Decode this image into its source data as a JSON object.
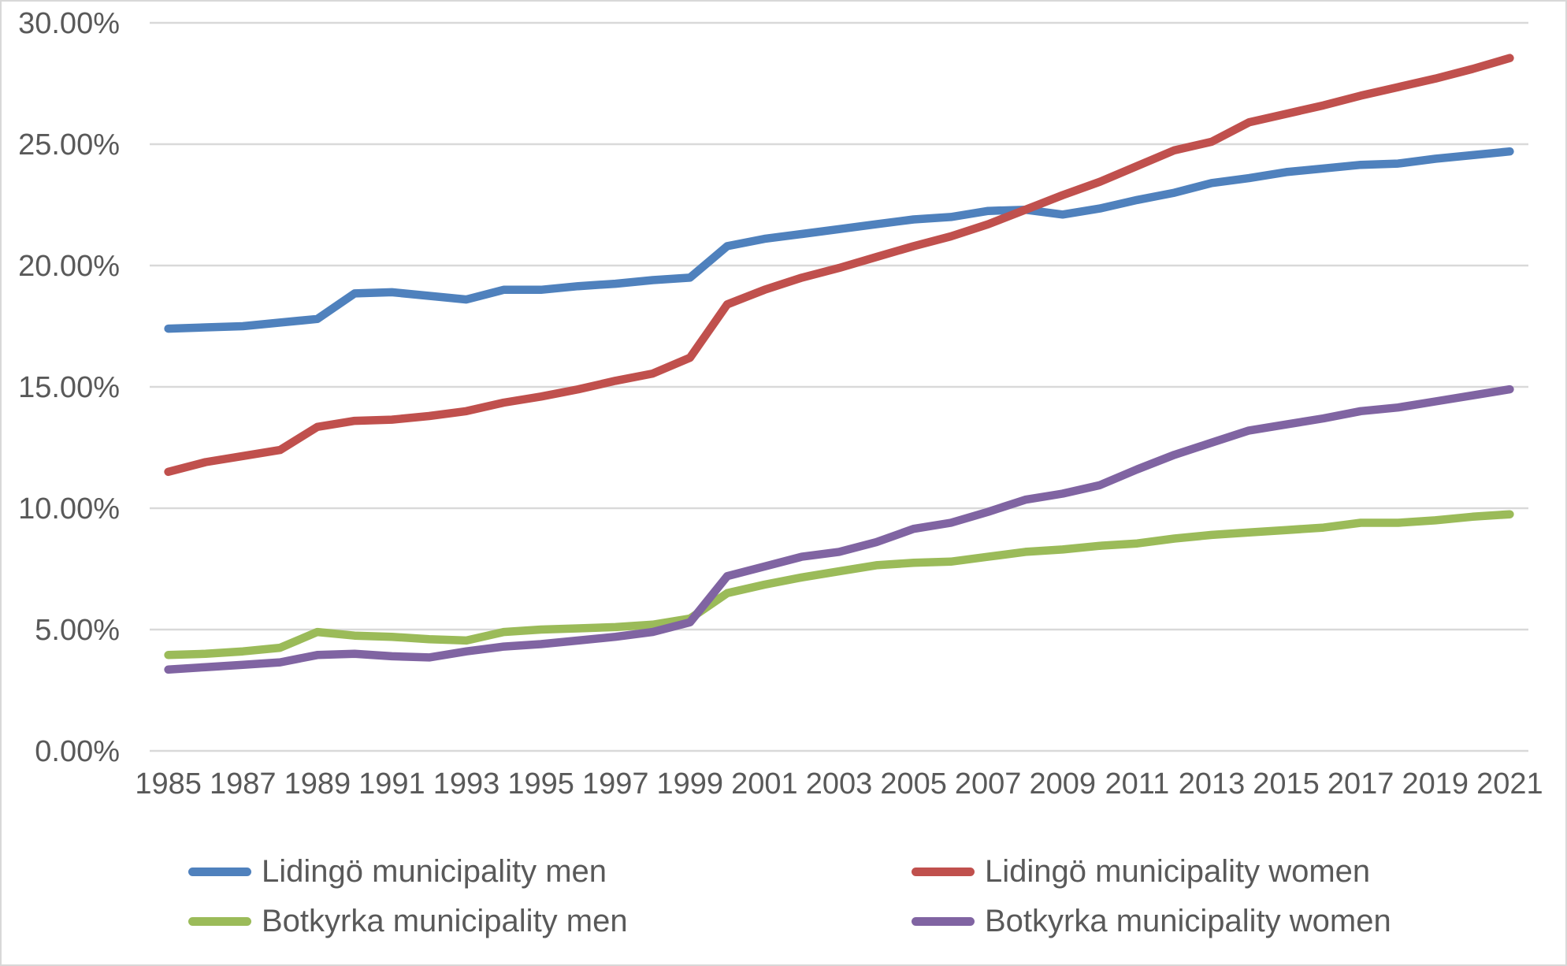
{
  "chart_data": {
    "type": "line",
    "x": [
      1985,
      1986,
      1987,
      1988,
      1989,
      1990,
      1991,
      1992,
      1993,
      1994,
      1995,
      1996,
      1997,
      1998,
      1999,
      2000,
      2001,
      2002,
      2003,
      2004,
      2005,
      2006,
      2007,
      2008,
      2009,
      2010,
      2011,
      2012,
      2013,
      2014,
      2015,
      2016,
      2017,
      2018,
      2019,
      2020,
      2021
    ],
    "series": [
      {
        "name": "Lidingö municipality men",
        "color": "#4F81BD",
        "values": [
          17.4,
          17.45,
          17.5,
          17.65,
          17.8,
          18.85,
          18.9,
          18.75,
          18.6,
          19.0,
          19.0,
          19.15,
          19.25,
          19.4,
          19.5,
          20.8,
          21.1,
          21.3,
          21.5,
          21.7,
          21.9,
          22.0,
          22.25,
          22.3,
          22.1,
          22.35,
          22.7,
          23.0,
          23.4,
          23.6,
          23.85,
          24.0,
          24.15,
          24.2,
          24.4,
          24.55,
          24.7
        ]
      },
      {
        "name": "Lidingö municipality women",
        "color": "#C0504D",
        "values": [
          11.5,
          11.9,
          12.15,
          12.4,
          13.35,
          13.6,
          13.65,
          13.8,
          14.0,
          14.35,
          14.6,
          14.9,
          15.25,
          15.55,
          16.2,
          18.4,
          19.0,
          19.5,
          19.9,
          20.35,
          20.8,
          21.2,
          21.7,
          22.3,
          22.9,
          23.45,
          24.1,
          24.75,
          25.1,
          25.9,
          26.25,
          26.6,
          27.0,
          27.35,
          27.7,
          28.1,
          28.55
        ]
      },
      {
        "name": "Botkyrka municipality men",
        "color": "#9BBB59",
        "values": [
          3.95,
          4.0,
          4.1,
          4.25,
          4.9,
          4.75,
          4.7,
          4.6,
          4.55,
          4.9,
          5.0,
          5.05,
          5.1,
          5.2,
          5.45,
          6.5,
          6.85,
          7.15,
          7.4,
          7.65,
          7.75,
          7.8,
          8.0,
          8.2,
          8.3,
          8.45,
          8.55,
          8.75,
          8.9,
          9.0,
          9.1,
          9.2,
          9.4,
          9.4,
          9.5,
          9.65,
          9.75
        ]
      },
      {
        "name": "Botkyrka municipality women",
        "color": "#8064A2",
        "values": [
          3.35,
          3.45,
          3.55,
          3.65,
          3.95,
          4.0,
          3.9,
          3.85,
          4.1,
          4.3,
          4.4,
          4.55,
          4.7,
          4.9,
          5.3,
          7.2,
          7.6,
          8.0,
          8.2,
          8.6,
          9.15,
          9.4,
          9.85,
          10.35,
          10.6,
          10.95,
          11.6,
          12.2,
          12.7,
          13.2,
          13.45,
          13.7,
          14.0,
          14.15,
          14.4,
          14.65,
          14.9
        ]
      }
    ],
    "ylim": [
      0,
      30
    ],
    "ytick_step": 5,
    "ytick_labels": [
      "0.00%",
      "5.00%",
      "10.00%",
      "15.00%",
      "20.00%",
      "25.00%",
      "30.00%"
    ],
    "xtick_labels": [
      "1985",
      "1987",
      "1989",
      "1991",
      "1993",
      "1995",
      "1997",
      "1999",
      "2001",
      "2003",
      "2005",
      "2007",
      "2009",
      "2011",
      "2013",
      "2015",
      "2017",
      "2019",
      "2021"
    ],
    "grid": true,
    "gridline_color": "#D9D9D9",
    "axis_text_color": "#595959",
    "legend_position": "bottom"
  }
}
